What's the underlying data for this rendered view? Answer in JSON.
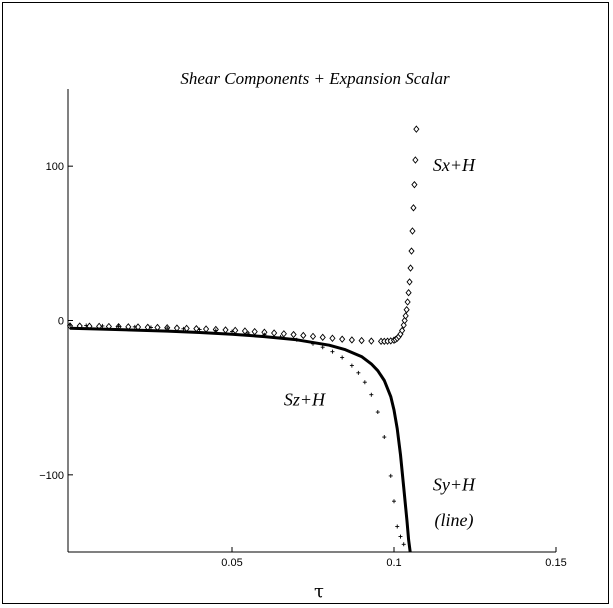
{
  "chart_data": {
    "type": "line",
    "title": "Shear Components + Expansion Scalar",
    "xlabel": "τ",
    "ylabel": "",
    "xlim": [
      0.0,
      0.15
    ],
    "ylim": [
      -150,
      150
    ],
    "x_ticks": [
      {
        "value": 0.05,
        "label": "0.05"
      },
      {
        "value": 0.1,
        "label": "0.1"
      },
      {
        "value": 0.15,
        "label": "0.15"
      }
    ],
    "y_ticks": [
      {
        "value": 100,
        "label": "100"
      },
      {
        "value": 0,
        "label": "0"
      },
      {
        "value": -100,
        "label": "−100"
      }
    ],
    "grid": false,
    "legend": "none",
    "annotations": [
      {
        "text": "Sx+H",
        "x": 0.112,
        "y": 97
      },
      {
        "text": "Sz+H",
        "x": 0.066,
        "y": -55
      },
      {
        "text": "Sy+H",
        "x": 0.112,
        "y": -110
      },
      {
        "text": "(line)",
        "x": 0.1125,
        "y": -133
      }
    ],
    "series": [
      {
        "marker": "diamond",
        "color": "#000000",
        "x": [
          0.0,
          0.003,
          0.006,
          0.009,
          0.012,
          0.015,
          0.018,
          0.021,
          0.024,
          0.027,
          0.03,
          0.033,
          0.036,
          0.039,
          0.042,
          0.045,
          0.048,
          0.051,
          0.054,
          0.057,
          0.06,
          0.063,
          0.066,
          0.069,
          0.072,
          0.075,
          0.078,
          0.081,
          0.084,
          0.087,
          0.09,
          0.093,
          0.096,
          0.097,
          0.098,
          0.099,
          0.1,
          0.1005,
          0.101,
          0.1015,
          0.102,
          0.1025,
          0.103,
          0.1033,
          0.1036,
          0.1039,
          0.1042,
          0.1045,
          0.1048,
          0.1051,
          0.1054,
          0.1057,
          0.106,
          0.1063,
          0.1066,
          0.1069
        ],
        "y": [
          -3.5,
          -3.6,
          -3.7,
          -3.8,
          -3.9,
          -4.0,
          -4.1,
          -4.2,
          -4.4,
          -4.5,
          -4.7,
          -4.9,
          -5.1,
          -5.3,
          -5.5,
          -5.8,
          -6.1,
          -6.4,
          -6.8,
          -7.2,
          -7.6,
          -8.1,
          -8.6,
          -9.1,
          -9.7,
          -10.3,
          -10.9,
          -11.5,
          -12.1,
          -12.6,
          -13.0,
          -13.3,
          -13.5,
          -13.5,
          -13.4,
          -13.2,
          -12.8,
          -12.3,
          -11.5,
          -10.4,
          -8.8,
          -6.5,
          -3.0,
          0,
          3,
          7,
          12,
          18,
          25,
          34,
          45,
          58,
          73,
          88,
          104,
          124
        ]
      },
      {
        "marker": "cross",
        "color": "#000000",
        "x": [
          0.0,
          0.005,
          0.01,
          0.015,
          0.02,
          0.025,
          0.03,
          0.035,
          0.04,
          0.045,
          0.05,
          0.055,
          0.06,
          0.065,
          0.07,
          0.075,
          0.078,
          0.081,
          0.084,
          0.087,
          0.089,
          0.091,
          0.093,
          0.095,
          0.097,
          0.099,
          0.1,
          0.101,
          0.102,
          0.103
        ],
        "y": [
          -3.0,
          -3.2,
          -3.5,
          -3.8,
          -4.1,
          -4.5,
          -4.9,
          -5.4,
          -5.9,
          -6.5,
          -7.2,
          -8.1,
          -9.2,
          -10.6,
          -12.5,
          -15.1,
          -17.3,
          -20.2,
          -24.0,
          -29.2,
          -33.9,
          -40.0,
          -48.1,
          -59.3,
          -75.5,
          -100.7,
          -117.1,
          -133.5,
          -140.0,
          -145.0
        ]
      },
      {
        "marker": "none",
        "color": "#000000",
        "x": [
          0.0,
          0.01,
          0.02,
          0.03,
          0.04,
          0.05,
          0.06,
          0.07,
          0.08,
          0.085,
          0.09,
          0.093,
          0.095,
          0.097,
          0.099,
          0.1,
          0.101,
          0.102,
          0.103,
          0.104,
          0.1045,
          0.105
        ],
        "y": [
          -5.0,
          -5.6,
          -6.2,
          -6.9,
          -7.8,
          -8.9,
          -10.4,
          -12.5,
          -16.0,
          -18.9,
          -23.4,
          -28.1,
          -32.5,
          -38.9,
          -49.4,
          -58.0,
          -70.0,
          -87.0,
          -108.0,
          -130.0,
          -142.0,
          -152.0
        ]
      }
    ]
  }
}
